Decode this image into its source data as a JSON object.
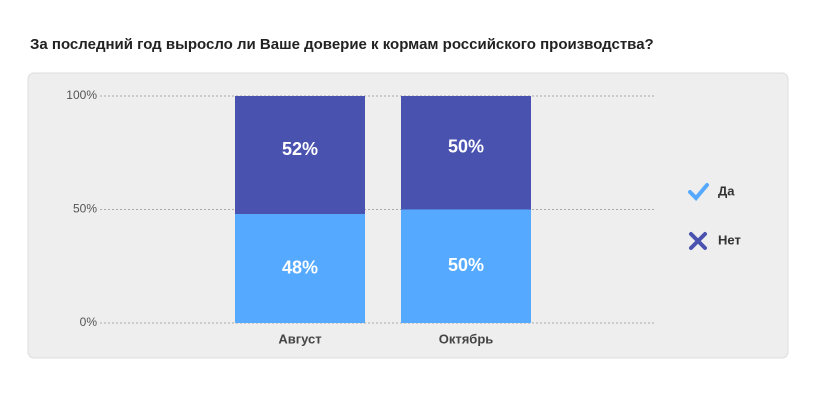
{
  "chart_data": {
    "type": "stacked-bar",
    "title": "За последний год выросло ли Ваше доверие к кормам российского производства?",
    "categories": [
      "Август",
      "Октябрь"
    ],
    "series": [
      {
        "name": "Да",
        "color": "#55aaff",
        "values": [
          48,
          50
        ],
        "value_labels": [
          "48%",
          "50%"
        ]
      },
      {
        "name": "Нет",
        "color": "#4a52b0",
        "values": [
          52,
          50
        ],
        "value_labels": [
          "52%",
          "50%"
        ]
      }
    ],
    "ylim": [
      0,
      100
    ],
    "yticks": [
      {
        "value": 0,
        "label": "0%"
      },
      {
        "value": 50,
        "label": "50%"
      },
      {
        "value": 100,
        "label": "100%"
      }
    ],
    "grid": true,
    "legend": "right"
  }
}
